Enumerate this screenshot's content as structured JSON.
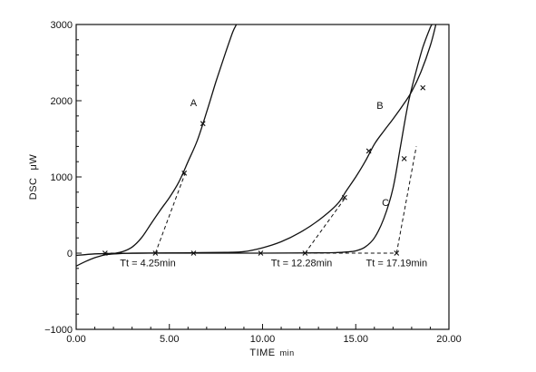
{
  "chart_data": {
    "type": "line",
    "title": "",
    "xlabel": "TIME",
    "xunit": "min",
    "ylabel": "DSC",
    "yunit": "μW",
    "xlim": [
      0,
      20
    ],
    "ylim": [
      -1000,
      3000
    ],
    "x_ticks": [
      0,
      5,
      10,
      15,
      20
    ],
    "x_tick_labels": [
      "0.00",
      "5.00",
      "10.00",
      "15.00",
      "20.00"
    ],
    "y_ticks": [
      -1000,
      0,
      1000,
      2000,
      3000
    ],
    "y_tick_labels": [
      "−1000",
      "0",
      "1000",
      "2000",
      "3000"
    ],
    "grid": false,
    "series": [
      {
        "name": "A",
        "points": [
          [
            0,
            -170
          ],
          [
            0.5,
            -110
          ],
          [
            1,
            -60
          ],
          [
            1.5,
            -25
          ],
          [
            2,
            -5
          ],
          [
            2.5,
            20
          ],
          [
            3,
            80
          ],
          [
            3.5,
            200
          ],
          [
            4,
            380
          ],
          [
            4.5,
            560
          ],
          [
            5,
            730
          ],
          [
            5.5,
            930
          ],
          [
            6,
            1200
          ],
          [
            6.5,
            1480
          ],
          [
            7,
            1850
          ],
          [
            7.5,
            2250
          ],
          [
            8,
            2620
          ],
          [
            8.4,
            2900
          ],
          [
            8.6,
            3000
          ]
        ],
        "markers": [
          [
            6.8,
            1700
          ],
          [
            5.8,
            1050
          ]
        ],
        "label_at": [
          6.3,
          1930
        ]
      },
      {
        "name": "B",
        "points": [
          [
            0,
            -30
          ],
          [
            1,
            -10
          ],
          [
            2,
            -3
          ],
          [
            4,
            0
          ],
          [
            6,
            5
          ],
          [
            8,
            10
          ],
          [
            9,
            20
          ],
          [
            10,
            70
          ],
          [
            11,
            150
          ],
          [
            12,
            270
          ],
          [
            13,
            430
          ],
          [
            14,
            640
          ],
          [
            14.5,
            820
          ],
          [
            15,
            1000
          ],
          [
            15.5,
            1200
          ],
          [
            16,
            1430
          ],
          [
            16.5,
            1600
          ],
          [
            17,
            1760
          ],
          [
            17.5,
            1930
          ],
          [
            18,
            2120
          ],
          [
            18.5,
            2380
          ],
          [
            19,
            2720
          ],
          [
            19.3,
            3000
          ]
        ],
        "markers": [
          [
            15.7,
            1340
          ],
          [
            14.4,
            730
          ]
        ],
        "label_at": [
          16.3,
          1890
        ]
      },
      {
        "name": "C",
        "points": [
          [
            1.5,
            -20
          ],
          [
            3,
            0
          ],
          [
            6,
            0
          ],
          [
            10,
            0
          ],
          [
            13,
            3
          ],
          [
            14,
            8
          ],
          [
            14.5,
            15
          ],
          [
            15,
            30
          ],
          [
            15.5,
            80
          ],
          [
            16,
            200
          ],
          [
            16.5,
            450
          ],
          [
            17,
            850
          ],
          [
            17.4,
            1400
          ],
          [
            17.8,
            1950
          ],
          [
            18.2,
            2350
          ],
          [
            18.6,
            2700
          ],
          [
            19,
            2960
          ],
          [
            19.1,
            3000
          ]
        ],
        "markers": [
          [
            18.6,
            2170
          ],
          [
            17.6,
            1240
          ]
        ],
        "label_at": [
          16.6,
          620
        ]
      }
    ],
    "tangents": [
      {
        "series": "A",
        "from": [
          4.25,
          0
        ],
        "to": [
          5.85,
          1050
        ]
      },
      {
        "series": "B",
        "from": [
          12.28,
          0
        ],
        "to": [
          14.45,
          730
        ]
      },
      {
        "series": "C",
        "from": [
          17.19,
          0
        ],
        "to": [
          18.25,
          1400
        ]
      }
    ],
    "baseline": {
      "from": [
        1.5,
        0
      ],
      "to": [
        17.19,
        0
      ]
    },
    "baseline_markers": [
      [
        1.55,
        0
      ],
      [
        4.25,
        0
      ],
      [
        6.3,
        0
      ],
      [
        9.9,
        0
      ],
      [
        12.28,
        0
      ],
      [
        17.19,
        0
      ]
    ],
    "annotations": [
      {
        "text": "Tt = 4.25min",
        "at": [
          2.35,
          -170
        ]
      },
      {
        "text": "Tt = 12.28min",
        "at": [
          10.45,
          -170
        ]
      },
      {
        "text": "Tt = 17.19min",
        "at": [
          15.55,
          -170
        ]
      }
    ]
  }
}
